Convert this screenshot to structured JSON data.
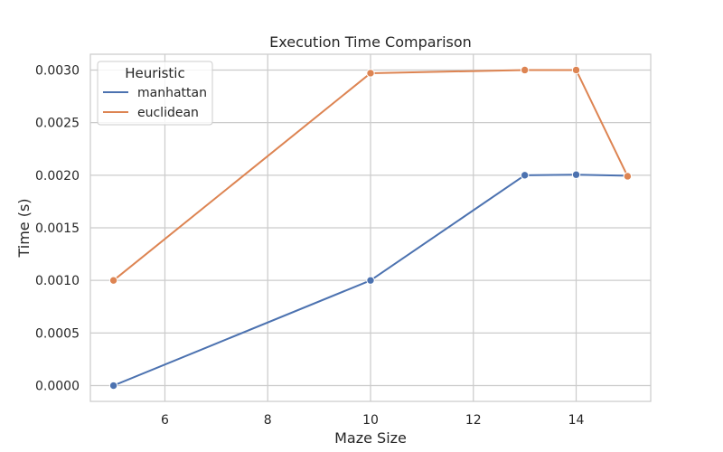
{
  "chart_data": {
    "type": "line",
    "title": "Execution Time Comparison",
    "xlabel": "Maze Size",
    "ylabel": "Time (s)",
    "xlim": [
      4.55,
      15.45
    ],
    "ylim": [
      -0.00015,
      0.00315
    ],
    "xticks": [
      6,
      8,
      10,
      12,
      14
    ],
    "xtick_labels": [
      "6",
      "8",
      "10",
      "12",
      "14"
    ],
    "yticks": [
      0,
      0.0005,
      0.001,
      0.0015,
      0.002,
      0.0025,
      0.003
    ],
    "ytick_labels": [
      "0.0000",
      "0.0005",
      "0.0010",
      "0.0015",
      "0.0020",
      "0.0025",
      "0.0030"
    ],
    "grid": true,
    "legend": {
      "title": "Heuristic",
      "position": "upper-left"
    },
    "series": [
      {
        "name": "manhattan",
        "color": "#4c72b0",
        "x": [
          5,
          10,
          13,
          14,
          15
        ],
        "y": [
          0.0,
          0.001,
          0.002,
          0.002005,
          0.001995
        ]
      },
      {
        "name": "euclidean",
        "color": "#dd8452",
        "x": [
          5,
          10,
          13,
          14,
          15
        ],
        "y": [
          0.001,
          0.00297,
          0.003,
          0.003,
          0.00199
        ]
      }
    ]
  }
}
